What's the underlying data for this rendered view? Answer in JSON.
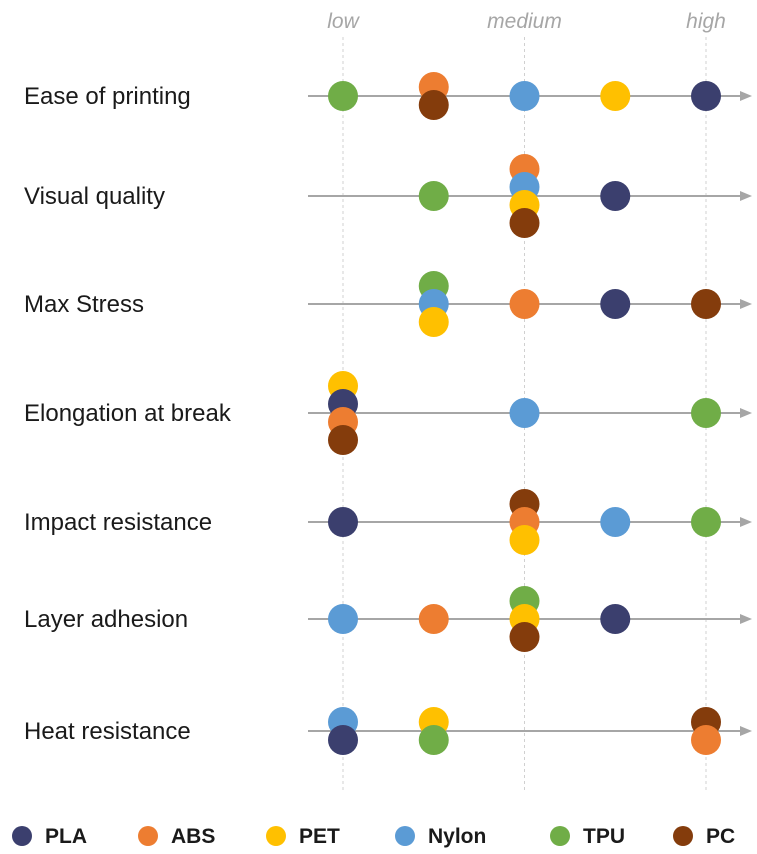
{
  "chart_data": {
    "type": "scatter",
    "title": "",
    "x_levels": [
      "low",
      "medium",
      "high"
    ],
    "x_range": [
      1,
      5
    ],
    "axis_color": "#a6a6a6",
    "series": [
      {
        "name": "PLA",
        "color": "#3b3f6e"
      },
      {
        "name": "ABS",
        "color": "#ed7d31"
      },
      {
        "name": "PET",
        "color": "#ffc000"
      },
      {
        "name": "Nylon",
        "color": "#5b9bd5"
      },
      {
        "name": "TPU",
        "color": "#70ad47"
      },
      {
        "name": "PC",
        "color": "#843c0c"
      }
    ],
    "categories": [
      {
        "label": "Ease of printing",
        "points": [
          {
            "series": "TPU",
            "x": 1,
            "stack": 0
          },
          {
            "series": "ABS",
            "x": 2,
            "stack": -0.5
          },
          {
            "series": "PC",
            "x": 2,
            "stack": 0.5
          },
          {
            "series": "Nylon",
            "x": 3,
            "stack": 0
          },
          {
            "series": "PET",
            "x": 4,
            "stack": 0
          },
          {
            "series": "PLA",
            "x": 5,
            "stack": 0
          }
        ]
      },
      {
        "label": "Visual quality",
        "points": [
          {
            "series": "TPU",
            "x": 2,
            "stack": 0
          },
          {
            "series": "ABS",
            "x": 3,
            "stack": -1.5
          },
          {
            "series": "Nylon",
            "x": 3,
            "stack": -0.5
          },
          {
            "series": "PET",
            "x": 3,
            "stack": 0.5
          },
          {
            "series": "PC",
            "x": 3,
            "stack": 1.5
          },
          {
            "series": "PLA",
            "x": 4,
            "stack": 0
          }
        ]
      },
      {
        "label": "Max Stress",
        "points": [
          {
            "series": "TPU",
            "x": 2,
            "stack": -1
          },
          {
            "series": "Nylon",
            "x": 2,
            "stack": 0
          },
          {
            "series": "PET",
            "x": 2,
            "stack": 1
          },
          {
            "series": "ABS",
            "x": 3,
            "stack": 0
          },
          {
            "series": "PLA",
            "x": 4,
            "stack": 0
          },
          {
            "series": "PC",
            "x": 5,
            "stack": 0
          }
        ]
      },
      {
        "label": "Elongation at break",
        "points": [
          {
            "series": "PET",
            "x": 1,
            "stack": -1.5
          },
          {
            "series": "PLA",
            "x": 1,
            "stack": -0.5
          },
          {
            "series": "ABS",
            "x": 1,
            "stack": 0.5
          },
          {
            "series": "PC",
            "x": 1,
            "stack": 1.5
          },
          {
            "series": "Nylon",
            "x": 3,
            "stack": 0
          },
          {
            "series": "TPU",
            "x": 5,
            "stack": 0
          }
        ]
      },
      {
        "label": "Impact resistance",
        "points": [
          {
            "series": "PLA",
            "x": 1,
            "stack": 0
          },
          {
            "series": "PC",
            "x": 3,
            "stack": -1
          },
          {
            "series": "ABS",
            "x": 3,
            "stack": 0
          },
          {
            "series": "PET",
            "x": 3,
            "stack": 1
          },
          {
            "series": "Nylon",
            "x": 4,
            "stack": 0
          },
          {
            "series": "TPU",
            "x": 5,
            "stack": 0
          }
        ]
      },
      {
        "label": "Layer adhesion",
        "points": [
          {
            "series": "Nylon",
            "x": 1,
            "stack": 0
          },
          {
            "series": "ABS",
            "x": 2,
            "stack": 0
          },
          {
            "series": "TPU",
            "x": 3,
            "stack": -1
          },
          {
            "series": "PET",
            "x": 3,
            "stack": 0
          },
          {
            "series": "PC",
            "x": 3,
            "stack": 1
          },
          {
            "series": "PLA",
            "x": 4,
            "stack": 0
          }
        ]
      },
      {
        "label": "Heat resistance",
        "points": [
          {
            "series": "Nylon",
            "x": 1,
            "stack": -0.5
          },
          {
            "series": "PLA",
            "x": 1,
            "stack": 0.5
          },
          {
            "series": "PET",
            "x": 2,
            "stack": -0.5
          },
          {
            "series": "TPU",
            "x": 2,
            "stack": 0.5
          },
          {
            "series": "PC",
            "x": 5,
            "stack": -0.5
          },
          {
            "series": "ABS",
            "x": 5,
            "stack": 0.5
          }
        ]
      }
    ],
    "legend_position": "bottom",
    "grid": "vertical dashed lines at low, medium, high"
  }
}
